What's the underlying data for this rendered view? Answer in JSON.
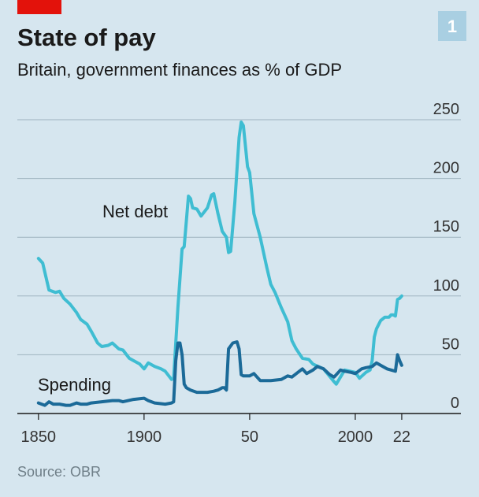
{
  "chart_data": {
    "type": "line",
    "title": "State of pay",
    "subtitle": "Britain, government finances as % of GDP",
    "badge": "1",
    "source": "Source: OBR",
    "xlim": [
      1840,
      2050
    ],
    "xticks": [
      1850,
      1900,
      {
        "value": 1950,
        "label": "50"
      },
      2000,
      {
        "value": 2022,
        "label": "22"
      }
    ],
    "ylim": [
      0,
      250
    ],
    "yticks": [
      0,
      50,
      100,
      150,
      200,
      250
    ],
    "grid": true,
    "series": [
      {
        "name": "Net debt",
        "color": "#3fbdd2",
        "x": [
          1850,
          1852,
          1855,
          1858,
          1860,
          1862,
          1865,
          1868,
          1870,
          1873,
          1875,
          1878,
          1880,
          1883,
          1885,
          1888,
          1890,
          1893,
          1895,
          1898,
          1900,
          1902,
          1905,
          1908,
          1910,
          1913,
          1914,
          1916,
          1918,
          1919,
          1921,
          1922,
          1923,
          1925,
          1927,
          1930,
          1932,
          1933,
          1935,
          1937,
          1939,
          1940,
          1941,
          1943,
          1945,
          1946,
          1947,
          1949,
          1950,
          1952,
          1955,
          1958,
          1960,
          1962,
          1965,
          1968,
          1970,
          1972,
          1975,
          1978,
          1980,
          1985,
          1990,
          1991,
          1995,
          2000,
          2002,
          2005,
          2007,
          2008,
          2009,
          2010,
          2012,
          2014,
          2016,
          2017,
          2018,
          2019,
          2020,
          2021,
          2022
        ],
        "values": [
          132,
          128,
          105,
          103,
          104,
          98,
          93,
          86,
          80,
          76,
          70,
          60,
          57,
          58,
          60,
          55,
          54,
          47,
          45,
          42,
          38,
          43,
          40,
          38,
          36,
          29,
          30,
          90,
          140,
          142,
          185,
          183,
          175,
          174,
          168,
          175,
          186,
          187,
          170,
          155,
          150,
          137,
          138,
          180,
          235,
          248,
          245,
          210,
          205,
          170,
          150,
          125,
          110,
          103,
          90,
          78,
          62,
          55,
          47,
          46,
          42,
          38,
          27,
          25,
          37,
          35,
          30,
          35,
          37,
          45,
          65,
          72,
          79,
          82,
          82,
          84,
          84,
          83,
          97,
          98,
          100
        ]
      },
      {
        "name": "Spending",
        "color": "#1b6a98",
        "x": [
          1850,
          1853,
          1855,
          1857,
          1860,
          1863,
          1865,
          1868,
          1870,
          1873,
          1875,
          1880,
          1885,
          1888,
          1890,
          1895,
          1900,
          1902,
          1905,
          1910,
          1913,
          1914,
          1915,
          1916,
          1917,
          1918,
          1919,
          1920,
          1922,
          1925,
          1930,
          1933,
          1935,
          1937,
          1938,
          1939,
          1940,
          1942,
          1944,
          1945,
          1946,
          1947,
          1950,
          1952,
          1955,
          1960,
          1965,
          1968,
          1970,
          1975,
          1977,
          1980,
          1982,
          1985,
          1988,
          1990,
          1993,
          1995,
          1998,
          2000,
          2003,
          2005,
          2008,
          2010,
          2012,
          2015,
          2019,
          2020,
          2021,
          2022
        ],
        "values": [
          9,
          7,
          10,
          8,
          8,
          7,
          7,
          9,
          8,
          8,
          9,
          10,
          11,
          11,
          10,
          12,
          13,
          11,
          9,
          8,
          9,
          10,
          45,
          60,
          60,
          50,
          25,
          22,
          20,
          18,
          18,
          19,
          20,
          22,
          22,
          20,
          55,
          60,
          61,
          55,
          33,
          32,
          32,
          34,
          28,
          28,
          29,
          32,
          31,
          38,
          34,
          37,
          40,
          38,
          33,
          31,
          37,
          36,
          35,
          34,
          38,
          39,
          40,
          43,
          41,
          38,
          36,
          50,
          45,
          41
        ]
      }
    ]
  }
}
